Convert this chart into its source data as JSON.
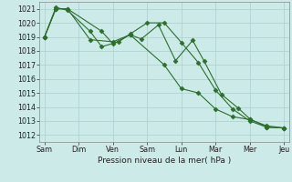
{
  "background_color": "#cceae8",
  "grid_color": "#aacece",
  "line_color": "#2d6e2d",
  "marker_color": "#2d6e2d",
  "xlabel": "Pression niveau de la mer( hPa )",
  "ylim": [
    1011.5,
    1021.5
  ],
  "yticks": [
    1012,
    1013,
    1014,
    1015,
    1016,
    1017,
    1018,
    1019,
    1020,
    1021
  ],
  "day_labels": [
    "Sam",
    "Dim",
    "Ven",
    "Sam",
    "Lun",
    "Mar",
    "Mer",
    "Jeu"
  ],
  "day_positions": [
    0,
    1,
    2,
    3,
    4,
    5,
    6,
    7
  ],
  "series1": {
    "x": [
      0.0,
      0.33,
      0.67,
      1.67,
      2.0,
      2.5,
      2.83,
      3.33,
      3.83,
      4.33,
      4.67,
      5.17,
      5.67,
      6.0,
      6.5,
      7.0
    ],
    "y": [
      1019.0,
      1021.0,
      1021.0,
      1019.4,
      1018.5,
      1019.15,
      1018.85,
      1019.85,
      1017.3,
      1018.75,
      1017.25,
      1014.9,
      1013.9,
      1013.15,
      1012.55,
      1012.5
    ]
  },
  "series2": {
    "x": [
      0.0,
      0.33,
      0.67,
      1.33,
      1.67,
      2.17,
      2.5,
      3.0,
      3.5,
      4.0,
      4.5,
      5.0,
      5.5,
      6.0,
      6.5,
      7.0
    ],
    "y": [
      1019.0,
      1021.1,
      1020.9,
      1019.4,
      1018.3,
      1018.65,
      1019.2,
      1020.0,
      1020.0,
      1018.6,
      1017.15,
      1015.2,
      1013.85,
      1013.0,
      1012.55,
      1012.5
    ]
  },
  "series3": {
    "x": [
      0.0,
      0.33,
      0.67,
      1.33,
      2.0,
      2.5,
      3.5,
      4.0,
      4.5,
      5.0,
      5.5,
      6.0,
      6.5,
      7.0
    ],
    "y": [
      1019.0,
      1021.0,
      1021.0,
      1018.8,
      1018.65,
      1019.15,
      1017.0,
      1015.3,
      1015.0,
      1013.85,
      1013.3,
      1013.1,
      1012.65,
      1012.5
    ]
  },
  "xlim": [
    -0.15,
    7.15
  ],
  "ylabel_fontsize": 6.5,
  "tick_fontsize": 5.8,
  "linewidth": 0.8,
  "markersize": 2.5
}
